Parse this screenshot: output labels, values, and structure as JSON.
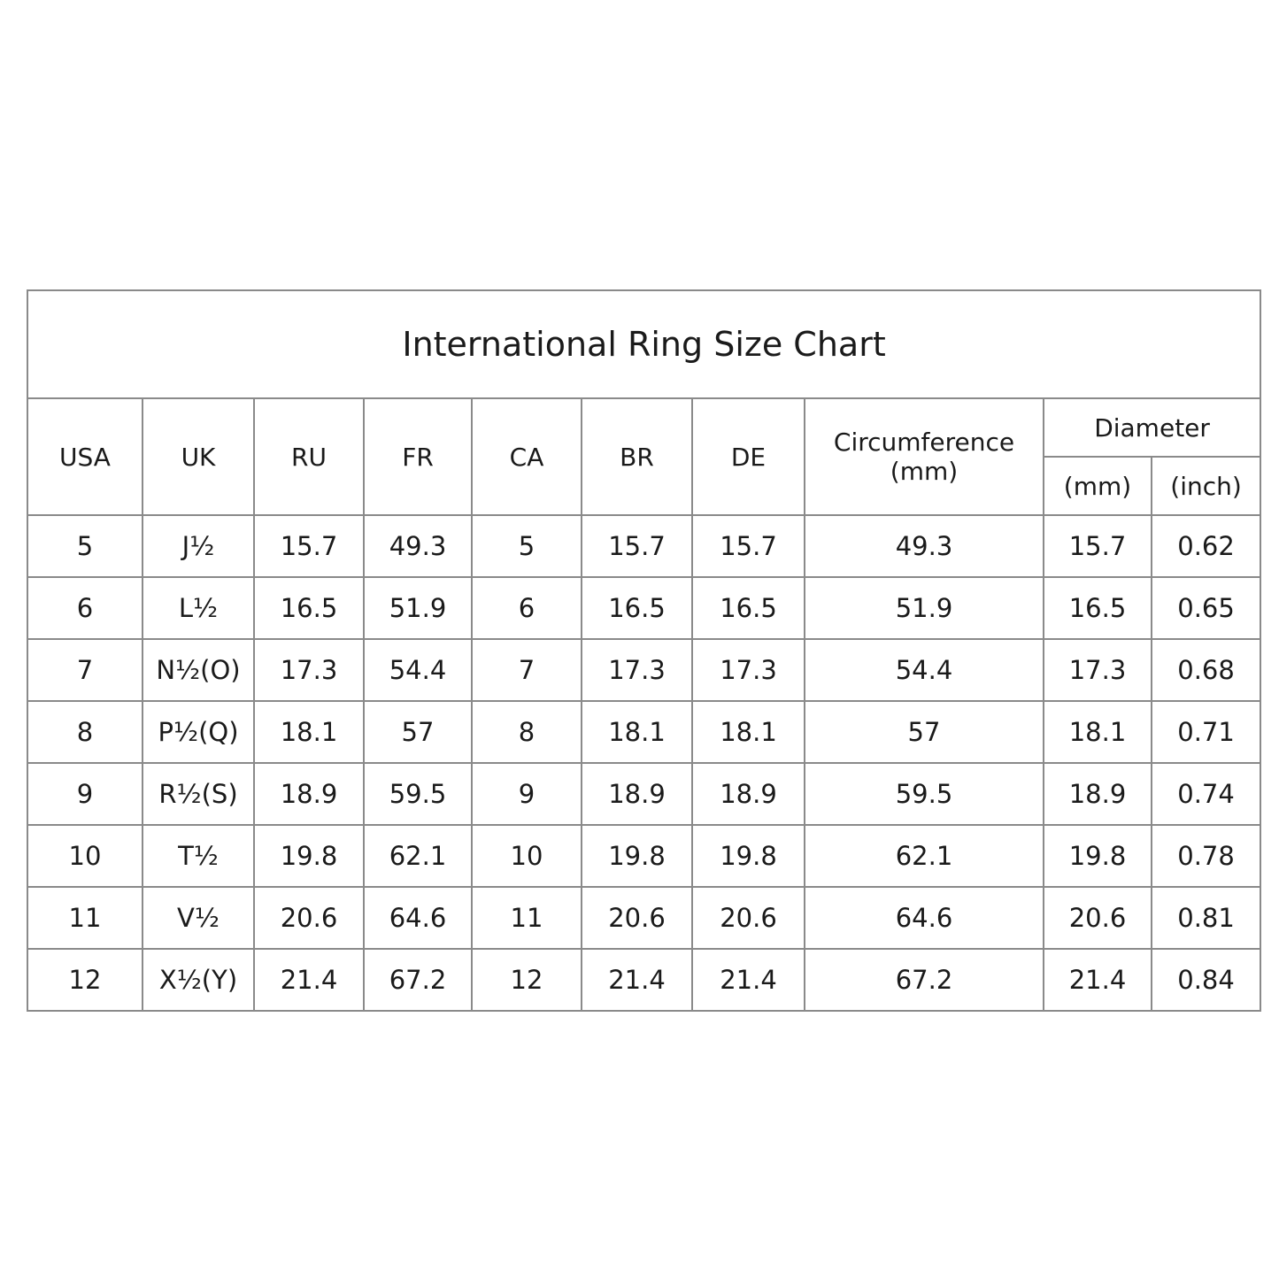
{
  "title": "International Ring Size Chart",
  "headers": {
    "usa": "USA",
    "uk": "UK",
    "ru": "RU",
    "fr": "FR",
    "ca": "CA",
    "br": "BR",
    "de": "DE",
    "circumference": "Circumference",
    "circumference_unit": "(mm)",
    "diameter": "Diameter",
    "diameter_mm": "(mm)",
    "diameter_inch": "(inch)"
  },
  "rows": [
    [
      "5",
      "J½",
      "15.7",
      "49.3",
      "5",
      "15.7",
      "15.7",
      "49.3",
      "15.7",
      "0.62"
    ],
    [
      "6",
      "L½",
      "16.5",
      "51.9",
      "6",
      "16.5",
      "16.5",
      "51.9",
      "16.5",
      "0.65"
    ],
    [
      "7",
      "N½(O)",
      "17.3",
      "54.4",
      "7",
      "17.3",
      "17.3",
      "54.4",
      "17.3",
      "0.68"
    ],
    [
      "8",
      "P½(Q)",
      "18.1",
      "57",
      "8",
      "18.1",
      "18.1",
      "57",
      "18.1",
      "0.71"
    ],
    [
      "9",
      "R½(S)",
      "18.9",
      "59.5",
      "9",
      "18.9",
      "18.9",
      "59.5",
      "18.9",
      "0.74"
    ],
    [
      "10",
      "T½",
      "19.8",
      "62.1",
      "10",
      "19.8",
      "19.8",
      "62.1",
      "19.8",
      "0.78"
    ],
    [
      "11",
      "V½",
      "20.6",
      "64.6",
      "11",
      "20.6",
      "20.6",
      "64.6",
      "20.6",
      "0.81"
    ],
    [
      "12",
      "X½(Y)",
      "21.4",
      "67.2",
      "12",
      "21.4",
      "21.4",
      "67.2",
      "21.4",
      "0.84"
    ]
  ]
}
